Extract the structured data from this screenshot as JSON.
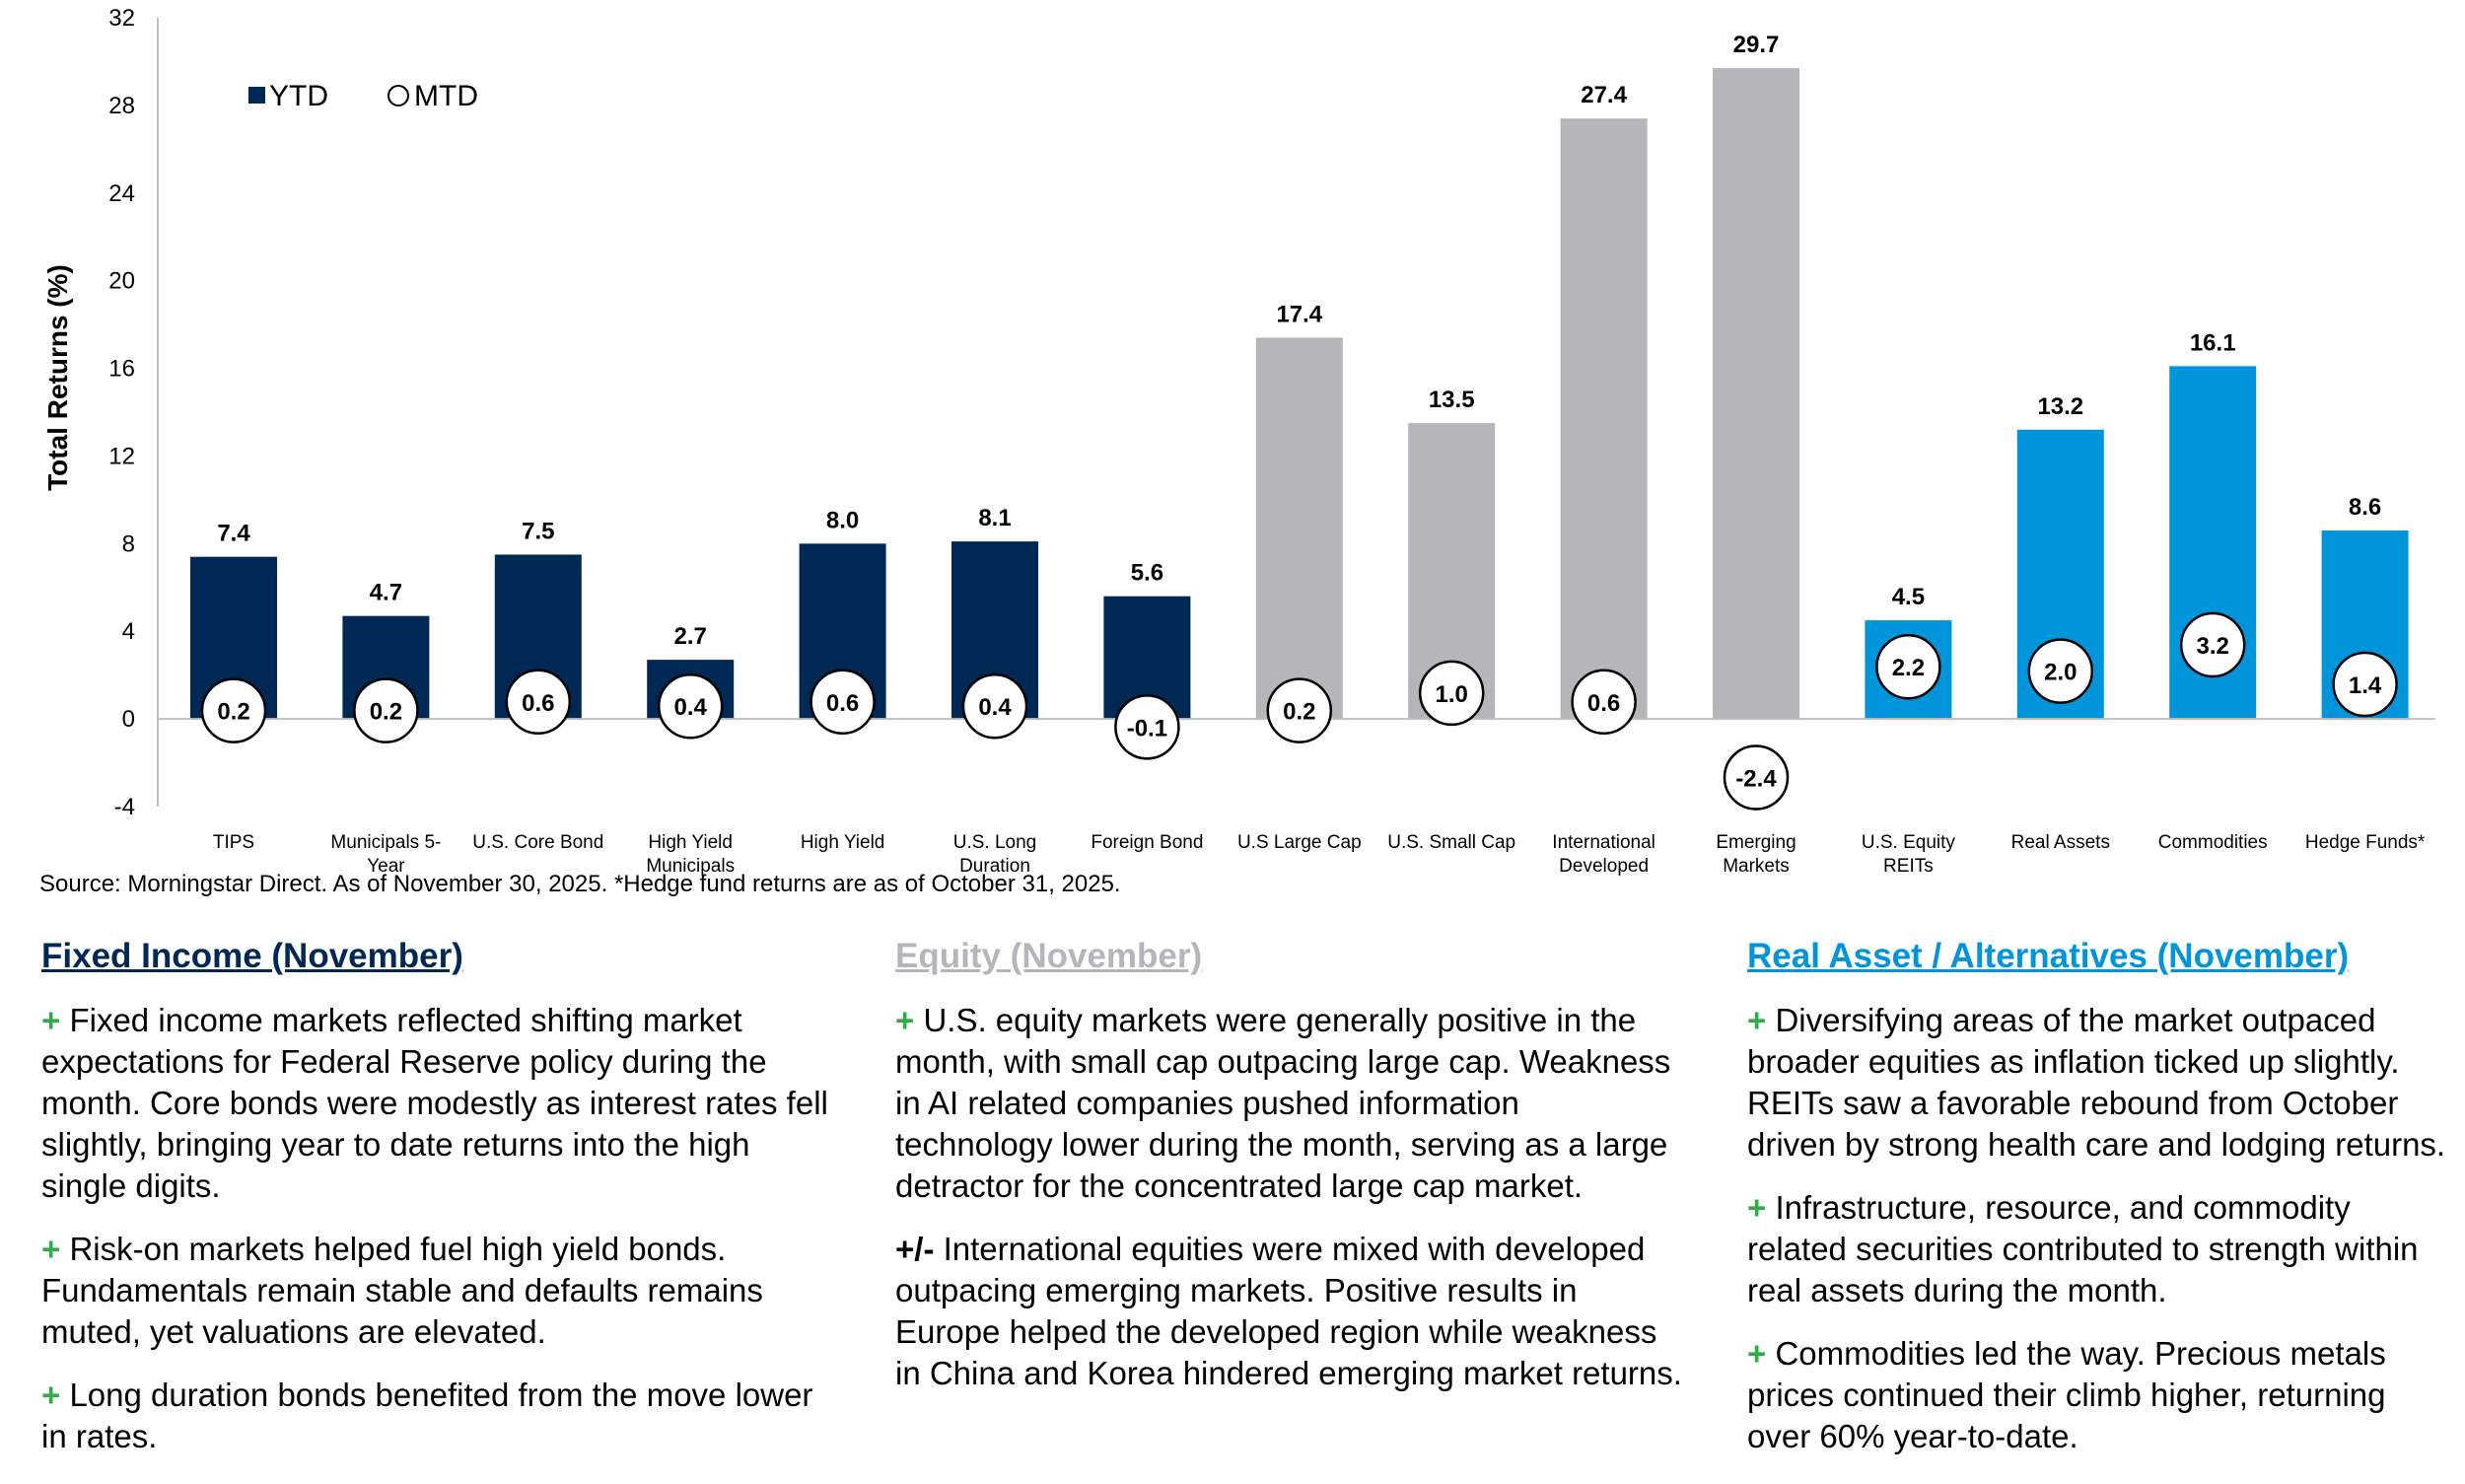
{
  "colors": {
    "fixed_income": "#002855",
    "equity": "#b4b6b9",
    "real_assets": "#0095db",
    "positive_sign": "#2fac48"
  },
  "chart_data": {
    "type": "bar",
    "ylabel": "Total Returns (%)",
    "ylim": [
      -4,
      32
    ],
    "yticks": [
      -4,
      0,
      4,
      8,
      12,
      16,
      20,
      24,
      28,
      32
    ],
    "legend": {
      "position": "top-left",
      "ytd_label": "YTD",
      "mtd_label": "MTD"
    },
    "categories": [
      {
        "label": [
          "TIPS"
        ],
        "group": "fixed_income"
      },
      {
        "label": [
          "Municipals 5-",
          "Year"
        ],
        "group": "fixed_income"
      },
      {
        "label": [
          "U.S. Core Bond"
        ],
        "group": "fixed_income"
      },
      {
        "label": [
          "High Yield",
          "Municipals"
        ],
        "group": "fixed_income"
      },
      {
        "label": [
          "High Yield"
        ],
        "group": "fixed_income"
      },
      {
        "label": [
          "U.S. Long",
          "Duration"
        ],
        "group": "fixed_income"
      },
      {
        "label": [
          "Foreign Bond"
        ],
        "group": "fixed_income"
      },
      {
        "label": [
          "U.S Large Cap"
        ],
        "group": "equity"
      },
      {
        "label": [
          "U.S. Small Cap"
        ],
        "group": "equity"
      },
      {
        "label": [
          "International",
          "Developed"
        ],
        "group": "equity"
      },
      {
        "label": [
          "Emerging",
          "Markets"
        ],
        "group": "equity"
      },
      {
        "label": [
          "U.S. Equity",
          "REITs"
        ],
        "group": "real_assets"
      },
      {
        "label": [
          "Real Assets"
        ],
        "group": "real_assets"
      },
      {
        "label": [
          "Commodities"
        ],
        "group": "real_assets"
      },
      {
        "label": [
          "Hedge Funds*"
        ],
        "group": "real_assets"
      }
    ],
    "series": [
      {
        "name": "YTD",
        "values": [
          7.4,
          4.7,
          7.5,
          2.7,
          8.0,
          8.1,
          5.6,
          17.4,
          13.5,
          27.4,
          29.7,
          4.5,
          13.2,
          16.1,
          8.6
        ]
      },
      {
        "name": "MTD",
        "values": [
          0.2,
          0.2,
          0.6,
          0.4,
          0.6,
          0.4,
          -0.1,
          0.2,
          1.0,
          0.6,
          -2.4,
          2.2,
          2.0,
          3.2,
          1.4
        ]
      }
    ]
  },
  "source_note": "Source: Morningstar Direct. As of November 30, 2025. *Hedge fund returns are as of October 31, 2025.",
  "commentary": {
    "fixed_income": {
      "title": "Fixed Income (November)",
      "bullets": [
        {
          "sign": "+",
          "text": "Fixed income markets reflected shifting market expectations for Federal Reserve policy during the month. Core bonds were modestly as interest rates fell slightly, bringing year to date returns into the high single digits."
        },
        {
          "sign": "+",
          "text": "Risk-on markets helped fuel high yield bonds. Fundamentals remain stable and defaults remains muted, yet valuations are elevated."
        },
        {
          "sign": "+",
          "text": "Long duration bonds benefited from the move lower in rates."
        }
      ]
    },
    "equity": {
      "title": "Equity (November)",
      "bullets": [
        {
          "sign": "+",
          "text": "U.S. equity markets were generally positive in the month, with small cap outpacing large cap. Weakness in AI related companies pushed information technology lower during the month, serving as a large detractor for the concentrated large cap market."
        },
        {
          "sign": "+/-",
          "text": "International equities were mixed with developed outpacing emerging markets. Positive results in Europe helped the developed region while weakness in China and Korea hindered emerging market returns."
        }
      ]
    },
    "real_assets": {
      "title": "Real Asset / Alternatives (November)",
      "bullets": [
        {
          "sign": "+",
          "text": "Diversifying areas of the market outpaced broader equities as inflation ticked up slightly. REITs saw a favorable rebound from October driven by strong health care and lodging returns."
        },
        {
          "sign": "+",
          "text": "Infrastructure, resource, and commodity related securities contributed to strength within real assets during the month."
        },
        {
          "sign": "+",
          "text": "Commodities led the way. Precious metals prices continued their climb higher, returning over 60% year-to-date."
        }
      ]
    }
  }
}
